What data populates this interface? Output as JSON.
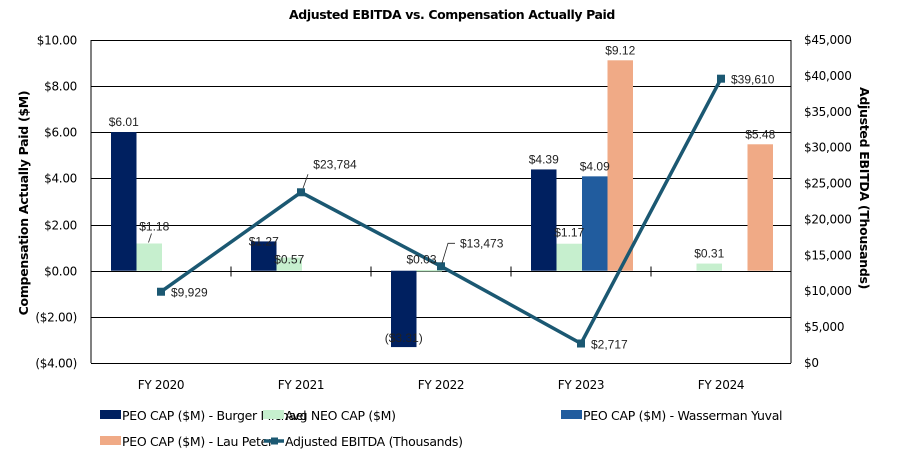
{
  "chart_data": {
    "type": "bar",
    "title": "Adjusted EBITDA vs. Compensation Actually Paid",
    "categories": [
      "FY 2020",
      "FY 2021",
      "FY 2022",
      "FY 2023",
      "FY 2024"
    ],
    "ylabel": "Compensation Actually Paid ($M)",
    "y2label": "Adjusted EBITDA (Thousands)",
    "ylim": [
      -4,
      10
    ],
    "y_ticks": [
      -4,
      -2,
      0,
      2,
      4,
      6,
      8,
      10
    ],
    "y_tick_labels": [
      "($4.00)",
      "($2.00)",
      "$0.00",
      "$2.00",
      "$4.00",
      "$6.00",
      "$8.00",
      "$10.00"
    ],
    "y2lim": [
      0,
      45000
    ],
    "y2_ticks": [
      0,
      5000,
      10000,
      15000,
      20000,
      25000,
      30000,
      35000,
      40000,
      45000
    ],
    "y2_tick_labels": [
      "$0",
      "$5,000",
      "$10,000",
      "$15,000",
      "$20,000",
      "$25,000",
      "$30,000",
      "$35,000",
      "$40,000",
      "$45,000"
    ],
    "grid": true,
    "legend_position": "bottom",
    "series": [
      {
        "name": "PEO CAP ($M) - Burger Michael",
        "kind": "bar",
        "axis": "left",
        "color": "#002060",
        "values": [
          6.01,
          1.27,
          -3.31,
          4.39,
          null
        ],
        "labels": [
          "$6.01",
          "$1.27",
          "($3.31)",
          "$4.39",
          null
        ]
      },
      {
        "name": "Avg NEO CAP ($M)",
        "kind": "bar",
        "axis": "left",
        "color": "#C6EFCE",
        "values": [
          1.18,
          0.57,
          0.03,
          1.17,
          0.31
        ],
        "labels": [
          "$1.18",
          "$0.57",
          "$0.03",
          "$1.17",
          "$0.31"
        ]
      },
      {
        "name": "PEO CAP ($M) - Wasserman Yuval",
        "kind": "bar",
        "axis": "left",
        "color": "#215C9E",
        "values": [
          null,
          null,
          null,
          4.09,
          null
        ],
        "labels": [
          null,
          null,
          null,
          "$4.09",
          null
        ]
      },
      {
        "name": "PEO CAP ($M) - Lau Peter",
        "kind": "bar",
        "axis": "left",
        "color": "#F0AA86",
        "values": [
          null,
          null,
          null,
          9.12,
          5.48
        ],
        "labels": [
          null,
          null,
          null,
          "$9.12",
          "$5.48"
        ]
      },
      {
        "name": "Adjusted EBITDA (Thousands)",
        "kind": "line",
        "axis": "right",
        "color": "#1B5872",
        "values": [
          9929,
          23784,
          13473,
          2717,
          39610
        ],
        "labels": [
          "$9,929",
          "$23,784",
          "$13,473",
          "$2,717",
          "$39,610"
        ]
      }
    ]
  }
}
